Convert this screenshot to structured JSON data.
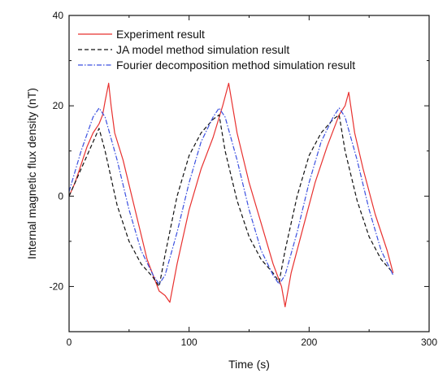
{
  "chart_data": {
    "type": "line",
    "title": "",
    "xlabel": "Time (s)",
    "ylabel": "Internal magnetic flux density (nT)",
    "xlim": [
      0,
      300
    ],
    "ylim": [
      -30,
      40
    ],
    "x_ticks": [
      0,
      100,
      200,
      300
    ],
    "y_ticks": [
      -20,
      0,
      20,
      40
    ],
    "x_tick_labels": [
      "0",
      "100",
      "200",
      "300"
    ],
    "y_tick_labels": [
      "-20",
      "0",
      "20",
      "40"
    ],
    "grid": false,
    "legend_position": "top-left",
    "series": [
      {
        "name": "Experiment result",
        "color": "#e8312f",
        "style": "solid",
        "points": [
          [
            0,
            0
          ],
          [
            5,
            3
          ],
          [
            10,
            7
          ],
          [
            15,
            11
          ],
          [
            20,
            14
          ],
          [
            25,
            16
          ],
          [
            28,
            18
          ],
          [
            30,
            21
          ],
          [
            33,
            25
          ],
          [
            35,
            20
          ],
          [
            38,
            14
          ],
          [
            45,
            8
          ],
          [
            55,
            -3
          ],
          [
            65,
            -14
          ],
          [
            75,
            -21
          ],
          [
            80,
            -22
          ],
          [
            84,
            -23.5
          ],
          [
            90,
            -15
          ],
          [
            100,
            -3
          ],
          [
            110,
            6
          ],
          [
            120,
            13
          ],
          [
            128,
            20
          ],
          [
            133,
            25
          ],
          [
            140,
            14
          ],
          [
            150,
            3
          ],
          [
            160,
            -6
          ],
          [
            170,
            -15
          ],
          [
            177,
            -20
          ],
          [
            180,
            -24.5
          ],
          [
            185,
            -17
          ],
          [
            195,
            -7
          ],
          [
            205,
            3
          ],
          [
            215,
            11
          ],
          [
            225,
            18
          ],
          [
            230,
            20
          ],
          [
            233,
            23
          ],
          [
            238,
            14
          ],
          [
            245,
            6
          ],
          [
            255,
            -4
          ],
          [
            265,
            -12
          ],
          [
            270,
            -17
          ]
        ]
      },
      {
        "name": "JA model method simulation result",
        "color": "#111111",
        "style": "dashed",
        "points": [
          [
            0,
            0
          ],
          [
            10,
            6
          ],
          [
            20,
            12
          ],
          [
            25,
            15
          ],
          [
            30,
            10
          ],
          [
            40,
            -2
          ],
          [
            50,
            -10
          ],
          [
            60,
            -15
          ],
          [
            70,
            -18
          ],
          [
            75,
            -20
          ],
          [
            80,
            -13
          ],
          [
            90,
            0
          ],
          [
            100,
            9
          ],
          [
            110,
            14
          ],
          [
            120,
            17
          ],
          [
            125,
            18
          ],
          [
            130,
            10
          ],
          [
            140,
            -1
          ],
          [
            150,
            -9
          ],
          [
            160,
            -14
          ],
          [
            170,
            -17
          ],
          [
            175,
            -19
          ],
          [
            180,
            -12
          ],
          [
            190,
            0
          ],
          [
            200,
            9
          ],
          [
            210,
            14
          ],
          [
            220,
            17
          ],
          [
            225,
            18
          ],
          [
            230,
            10
          ],
          [
            240,
            -1
          ],
          [
            250,
            -9
          ],
          [
            260,
            -14
          ],
          [
            270,
            -17
          ]
        ]
      },
      {
        "name": "Fourier decomposition method simulation result",
        "color": "#3a4fe0",
        "style": "dashdot",
        "points": [
          [
            0,
            1
          ],
          [
            10,
            10
          ],
          [
            20,
            17.5
          ],
          [
            25,
            19.5
          ],
          [
            30,
            17.5
          ],
          [
            40,
            8
          ],
          [
            50,
            -3
          ],
          [
            60,
            -12
          ],
          [
            70,
            -17.5
          ],
          [
            75,
            -19.5
          ],
          [
            80,
            -17.5
          ],
          [
            90,
            -8
          ],
          [
            100,
            3
          ],
          [
            110,
            12
          ],
          [
            120,
            17.5
          ],
          [
            125,
            19.5
          ],
          [
            130,
            17.5
          ],
          [
            140,
            8
          ],
          [
            150,
            -3
          ],
          [
            160,
            -12
          ],
          [
            170,
            -17.5
          ],
          [
            175,
            -19.5
          ],
          [
            180,
            -17.5
          ],
          [
            190,
            -8
          ],
          [
            200,
            3
          ],
          [
            210,
            12
          ],
          [
            220,
            17.5
          ],
          [
            225,
            19.5
          ],
          [
            230,
            17.5
          ],
          [
            240,
            8
          ],
          [
            250,
            -3
          ],
          [
            260,
            -12
          ],
          [
            270,
            -17.5
          ]
        ]
      }
    ]
  }
}
